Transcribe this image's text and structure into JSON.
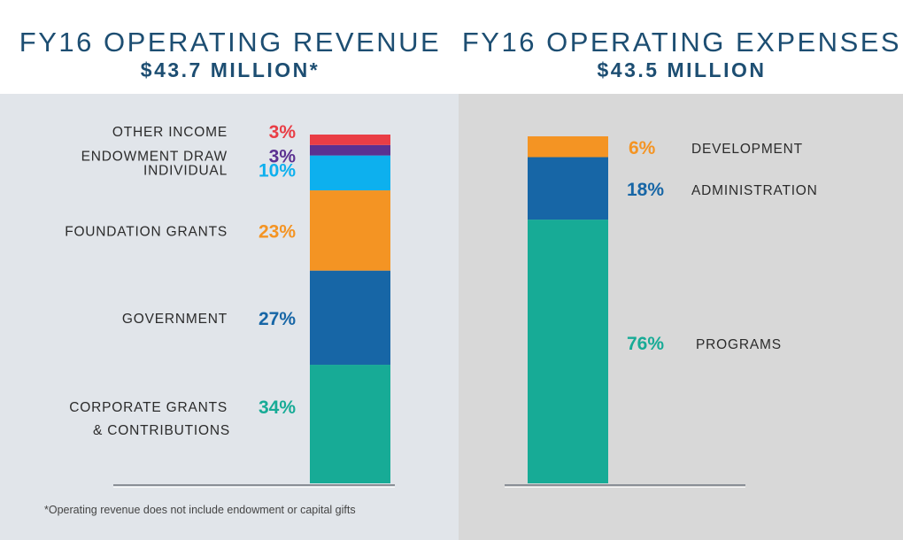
{
  "headers": {
    "revenue_title": "FY16 OPERATING REVENUE",
    "revenue_total": "$43.7 MILLION*",
    "expenses_title": "FY16 OPERATING EXPENSES",
    "expenses_total": "$43.5 MILLION"
  },
  "footnote": "*Operating revenue does not include endowment or capital gifts",
  "chart_data": [
    {
      "type": "bar",
      "stacked": true,
      "title": "FY16 OPERATING REVENUE",
      "subtitle": "$43.7 MILLION*",
      "unit": "%",
      "segments": [
        {
          "name": "CORPORATE GRANTS",
          "name_line2": "& CONTRIBUTIONS",
          "value": 34,
          "label": "34%",
          "color": "#17ab96"
        },
        {
          "name": "GOVERNMENT",
          "value": 27,
          "label": "27%",
          "color": "#1766a6"
        },
        {
          "name": "FOUNDATION GRANTS",
          "value": 23,
          "label": "23%",
          "color": "#f49423"
        },
        {
          "name": "INDIVIDUAL",
          "value": 10,
          "label": "10%",
          "color": "#0db0ee"
        },
        {
          "name": "ENDOWMENT DRAW",
          "value": 3,
          "label": "3%",
          "color": "#5b3191"
        },
        {
          "name": "OTHER INCOME",
          "value": 3,
          "label": "3%",
          "color": "#e93d45"
        }
      ]
    },
    {
      "type": "bar",
      "stacked": true,
      "title": "FY16 OPERATING EXPENSES",
      "subtitle": "$43.5 MILLION",
      "unit": "%",
      "segments": [
        {
          "name": "PROGRAMS",
          "value": 76,
          "label": "76%",
          "color": "#17ab96"
        },
        {
          "name": "ADMINISTRATION",
          "value": 18,
          "label": "18%",
          "color": "#1766a6"
        },
        {
          "name": "DEVELOPMENT",
          "value": 6,
          "label": "6%",
          "color": "#f49423"
        }
      ]
    }
  ]
}
